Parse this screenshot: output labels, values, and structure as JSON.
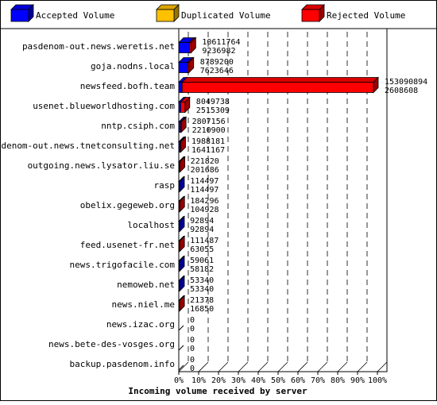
{
  "legend": [
    {
      "label": "Accepted Volume",
      "color": "#0000ff"
    },
    {
      "label": "Duplicated Volume",
      "color": "#ffc000"
    },
    {
      "label": "Rejected Volume",
      "color": "#ff0000"
    }
  ],
  "chart_data": {
    "type": "bar",
    "orientation": "horizontal",
    "xlabel": "Incoming volume received by server",
    "x_ticks": [
      "0%",
      "10%",
      "20%",
      "30%",
      "40%",
      "50%",
      "60%",
      "70%",
      "80%",
      "90%",
      "100%"
    ],
    "xlim": [
      0,
      100
    ],
    "grid": true,
    "legend_position": "top",
    "categories": [
      "pasdenom-out.news.weretis.net",
      "goja.nodns.local",
      "newsfeed.bofh.team",
      "usenet.blueworldhosting.com",
      "nntp.csiph.com",
      "pasdenom-out.news.tnetconsulting.net",
      "outgoing.news.lysator.liu.se",
      "rasp",
      "obelix.gegeweb.org",
      "localhost",
      "feed.usenet-fr.net",
      "news.trigofacile.com",
      "nemoweb.net",
      "news.niel.me",
      "news.izac.org",
      "news.bete-des-vosges.org",
      "backup.pasdenom.info"
    ],
    "totals": [
      "10611764",
      "8789200",
      "153090894",
      "8049738",
      "2807156",
      "1988181",
      "221820",
      "114497",
      "184296",
      "92894",
      "111487",
      "59061",
      "53340",
      "21378",
      "0",
      "0",
      "0"
    ],
    "accepted": [
      "9236982",
      "7623646",
      "2608608",
      "2515309",
      "2210900",
      "1641167",
      "201686",
      "114497",
      "104928",
      "92894",
      "63055",
      "58182",
      "53340",
      "16850",
      "0",
      "0",
      "0"
    ],
    "series": [
      {
        "name": "Accepted Volume",
        "values": [
          5.34,
          4.41,
          1.7,
          0.99,
          0.87,
          0.61,
          0.26,
          0.13,
          0.1,
          0.06,
          0.06,
          0.04,
          0.03,
          0.02,
          0,
          0,
          0
        ]
      },
      {
        "name": "Duplicated Volume",
        "values": [
          0,
          0,
          0,
          0,
          0,
          0,
          0,
          0,
          0,
          0,
          0,
          0,
          0,
          0,
          0,
          0,
          0
        ]
      },
      {
        "name": "Rejected Volume",
        "values": [
          0.8,
          0.68,
          96.3,
          2.13,
          0.16,
          0.18,
          0.01,
          0,
          0.05,
          0,
          0.03,
          0,
          0,
          0.01,
          0,
          0,
          0
        ]
      }
    ]
  }
}
